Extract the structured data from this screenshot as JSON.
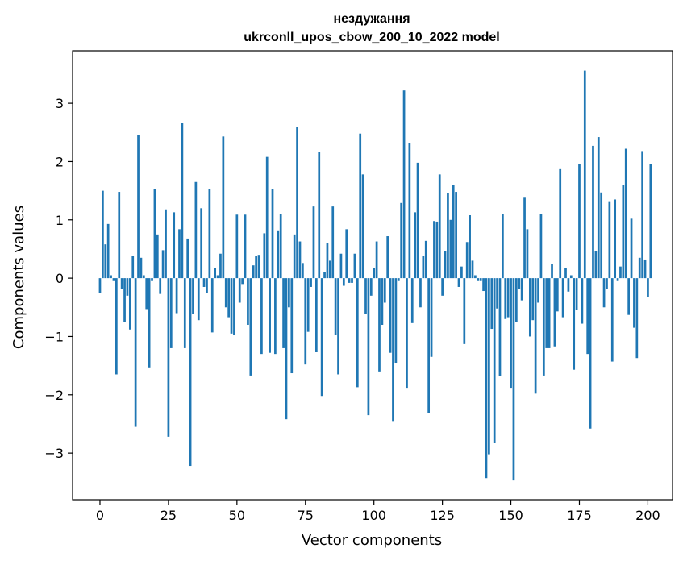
{
  "chart_data": {
    "type": "bar",
    "title_line1": "нездужання",
    "title_line2": "ukrconll_upos_cbow_200_10_2022 model",
    "xlabel": "Vector components",
    "ylabel": "Components values",
    "xlim": [
      -10,
      209
    ],
    "ylim": [
      -3.8,
      3.9
    ],
    "xticks": [
      0,
      25,
      50,
      75,
      100,
      125,
      150,
      175,
      200
    ],
    "xtick_labels": [
      "0",
      "25",
      "50",
      "75",
      "100",
      "125",
      "150",
      "175",
      "200"
    ],
    "yticks": [
      -3,
      -2,
      -1,
      0,
      1,
      2,
      3
    ],
    "ytick_labels": [
      "−3",
      "−2",
      "−1",
      "0",
      "1",
      "2",
      "3"
    ],
    "bar_color": "#1f77b4",
    "grid": false,
    "values": [
      -0.25,
      1.5,
      0.58,
      0.93,
      0.05,
      -0.05,
      -1.65,
      1.48,
      -0.18,
      -0.75,
      -0.3,
      -0.88,
      0.38,
      -2.55,
      2.46,
      0.35,
      0.05,
      -0.53,
      -1.53,
      -0.05,
      1.53,
      0.75,
      -0.27,
      0.48,
      1.18,
      -2.72,
      -1.2,
      1.13,
      -0.6,
      0.84,
      2.66,
      -1.2,
      0.68,
      -3.22,
      -0.62,
      1.65,
      -0.72,
      1.2,
      -0.15,
      -0.25,
      1.53,
      -0.93,
      0.18,
      0.05,
      0.42,
      2.43,
      -0.5,
      -0.67,
      -0.95,
      -0.98,
      1.09,
      -0.42,
      -0.1,
      1.09,
      -0.8,
      -1.67,
      0.22,
      0.38,
      0.4,
      -1.3,
      0.77,
      2.08,
      -1.28,
      1.53,
      -1.3,
      0.82,
      1.1,
      -1.2,
      -2.42,
      -0.5,
      -1.63,
      0.75,
      2.6,
      0.63,
      0.26,
      -1.48,
      -0.92,
      -0.15,
      1.23,
      -1.27,
      2.17,
      -2.02,
      0.1,
      0.6,
      0.3,
      1.23,
      -0.97,
      -1.65,
      0.42,
      -0.13,
      0.84,
      -0.08,
      -0.08,
      0.42,
      -1.87,
      2.48,
      1.78,
      -0.62,
      -2.35,
      -0.3,
      0.17,
      0.63,
      -1.6,
      -0.8,
      -0.42,
      0.72,
      -1.28,
      -2.45,
      -1.45,
      -0.05,
      1.29,
      3.22,
      -1.88,
      2.32,
      -0.77,
      1.13,
      1.98,
      -0.5,
      0.38,
      0.64,
      -2.32,
      -1.35,
      0.98,
      0.97,
      1.78,
      -0.3,
      0.47,
      1.46,
      1.0,
      1.6,
      1.48,
      -0.15,
      0.2,
      -1.13,
      0.62,
      1.08,
      0.3,
      0.05,
      -0.05,
      -0.05,
      -0.22,
      -3.43,
      -3.02,
      -0.87,
      -2.82,
      -0.52,
      -1.68,
      1.1,
      -0.7,
      -0.67,
      -1.88,
      -3.47,
      -0.75,
      -0.18,
      -0.38,
      1.38,
      0.84,
      -1.0,
      -0.72,
      -1.98,
      -0.42,
      1.1,
      -1.67,
      -1.2,
      -1.2,
      0.24,
      -1.17,
      -0.57,
      1.87,
      -0.67,
      0.18,
      -0.23,
      0.05,
      -1.57,
      -0.55,
      1.96,
      -0.78,
      3.56,
      -1.3,
      -2.58,
      2.27,
      0.46,
      2.42,
      1.47,
      -0.5,
      -0.18,
      1.32,
      -1.43,
      1.35,
      -0.05,
      0.2,
      1.6,
      2.22,
      -0.63,
      1.02,
      -0.85,
      -1.37,
      0.35,
      2.18,
      0.32,
      -0.33,
      1.96
    ]
  }
}
